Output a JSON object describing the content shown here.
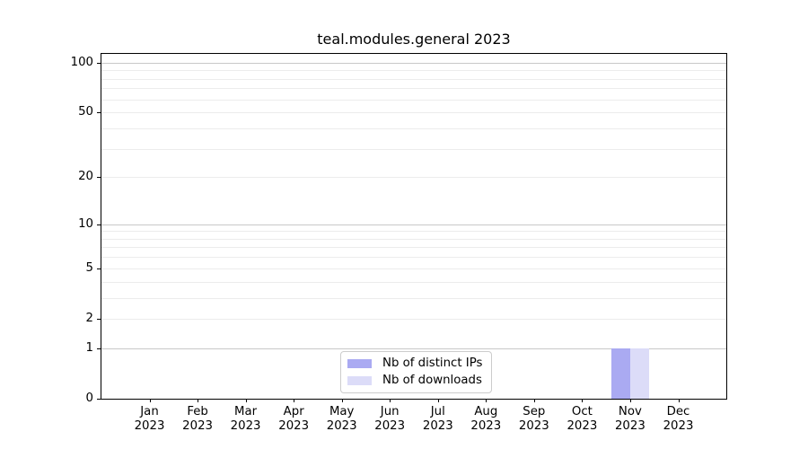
{
  "title": "teal.modules.general 2023",
  "legend": {
    "items": [
      {
        "label": "Nb of distinct IPs",
        "color": "#aaaaf2"
      },
      {
        "label": "Nb of downloads",
        "color": "#dcdcf8"
      }
    ]
  },
  "chart_data": {
    "type": "bar",
    "title": "teal.modules.general 2023",
    "categories": [
      "Jan 2023",
      "Feb 2023",
      "Mar 2023",
      "Apr 2023",
      "May 2023",
      "Jun 2023",
      "Jul 2023",
      "Aug 2023",
      "Sep 2023",
      "Oct 2023",
      "Nov 2023",
      "Dec 2023"
    ],
    "series": [
      {
        "name": "Nb of distinct IPs",
        "color": "#aaaaf2",
        "values": [
          0,
          0,
          0,
          0,
          0,
          0,
          0,
          0,
          0,
          0,
          1,
          0
        ]
      },
      {
        "name": "Nb of downloads",
        "color": "#dcdcf8",
        "values": [
          0,
          0,
          0,
          0,
          0,
          0,
          0,
          0,
          0,
          0,
          1,
          0
        ]
      }
    ],
    "xlabel": "",
    "ylabel": "",
    "yscale": "log10(1+x)",
    "ylim": [
      0,
      113
    ],
    "yticks": [
      0,
      1,
      2,
      5,
      10,
      20,
      50,
      100
    ],
    "minor_yticks": [
      3,
      4,
      6,
      7,
      8,
      9,
      30,
      40,
      60,
      70,
      80,
      90
    ],
    "major_gridlines_at": [
      1,
      10,
      100
    ],
    "grid": "horizontal",
    "legend_position": "lower center",
    "colors": {
      "major_grid": "#c8c8c8",
      "minor_grid": "#ececec",
      "axis": "#000000",
      "background": "#ffffff"
    }
  }
}
